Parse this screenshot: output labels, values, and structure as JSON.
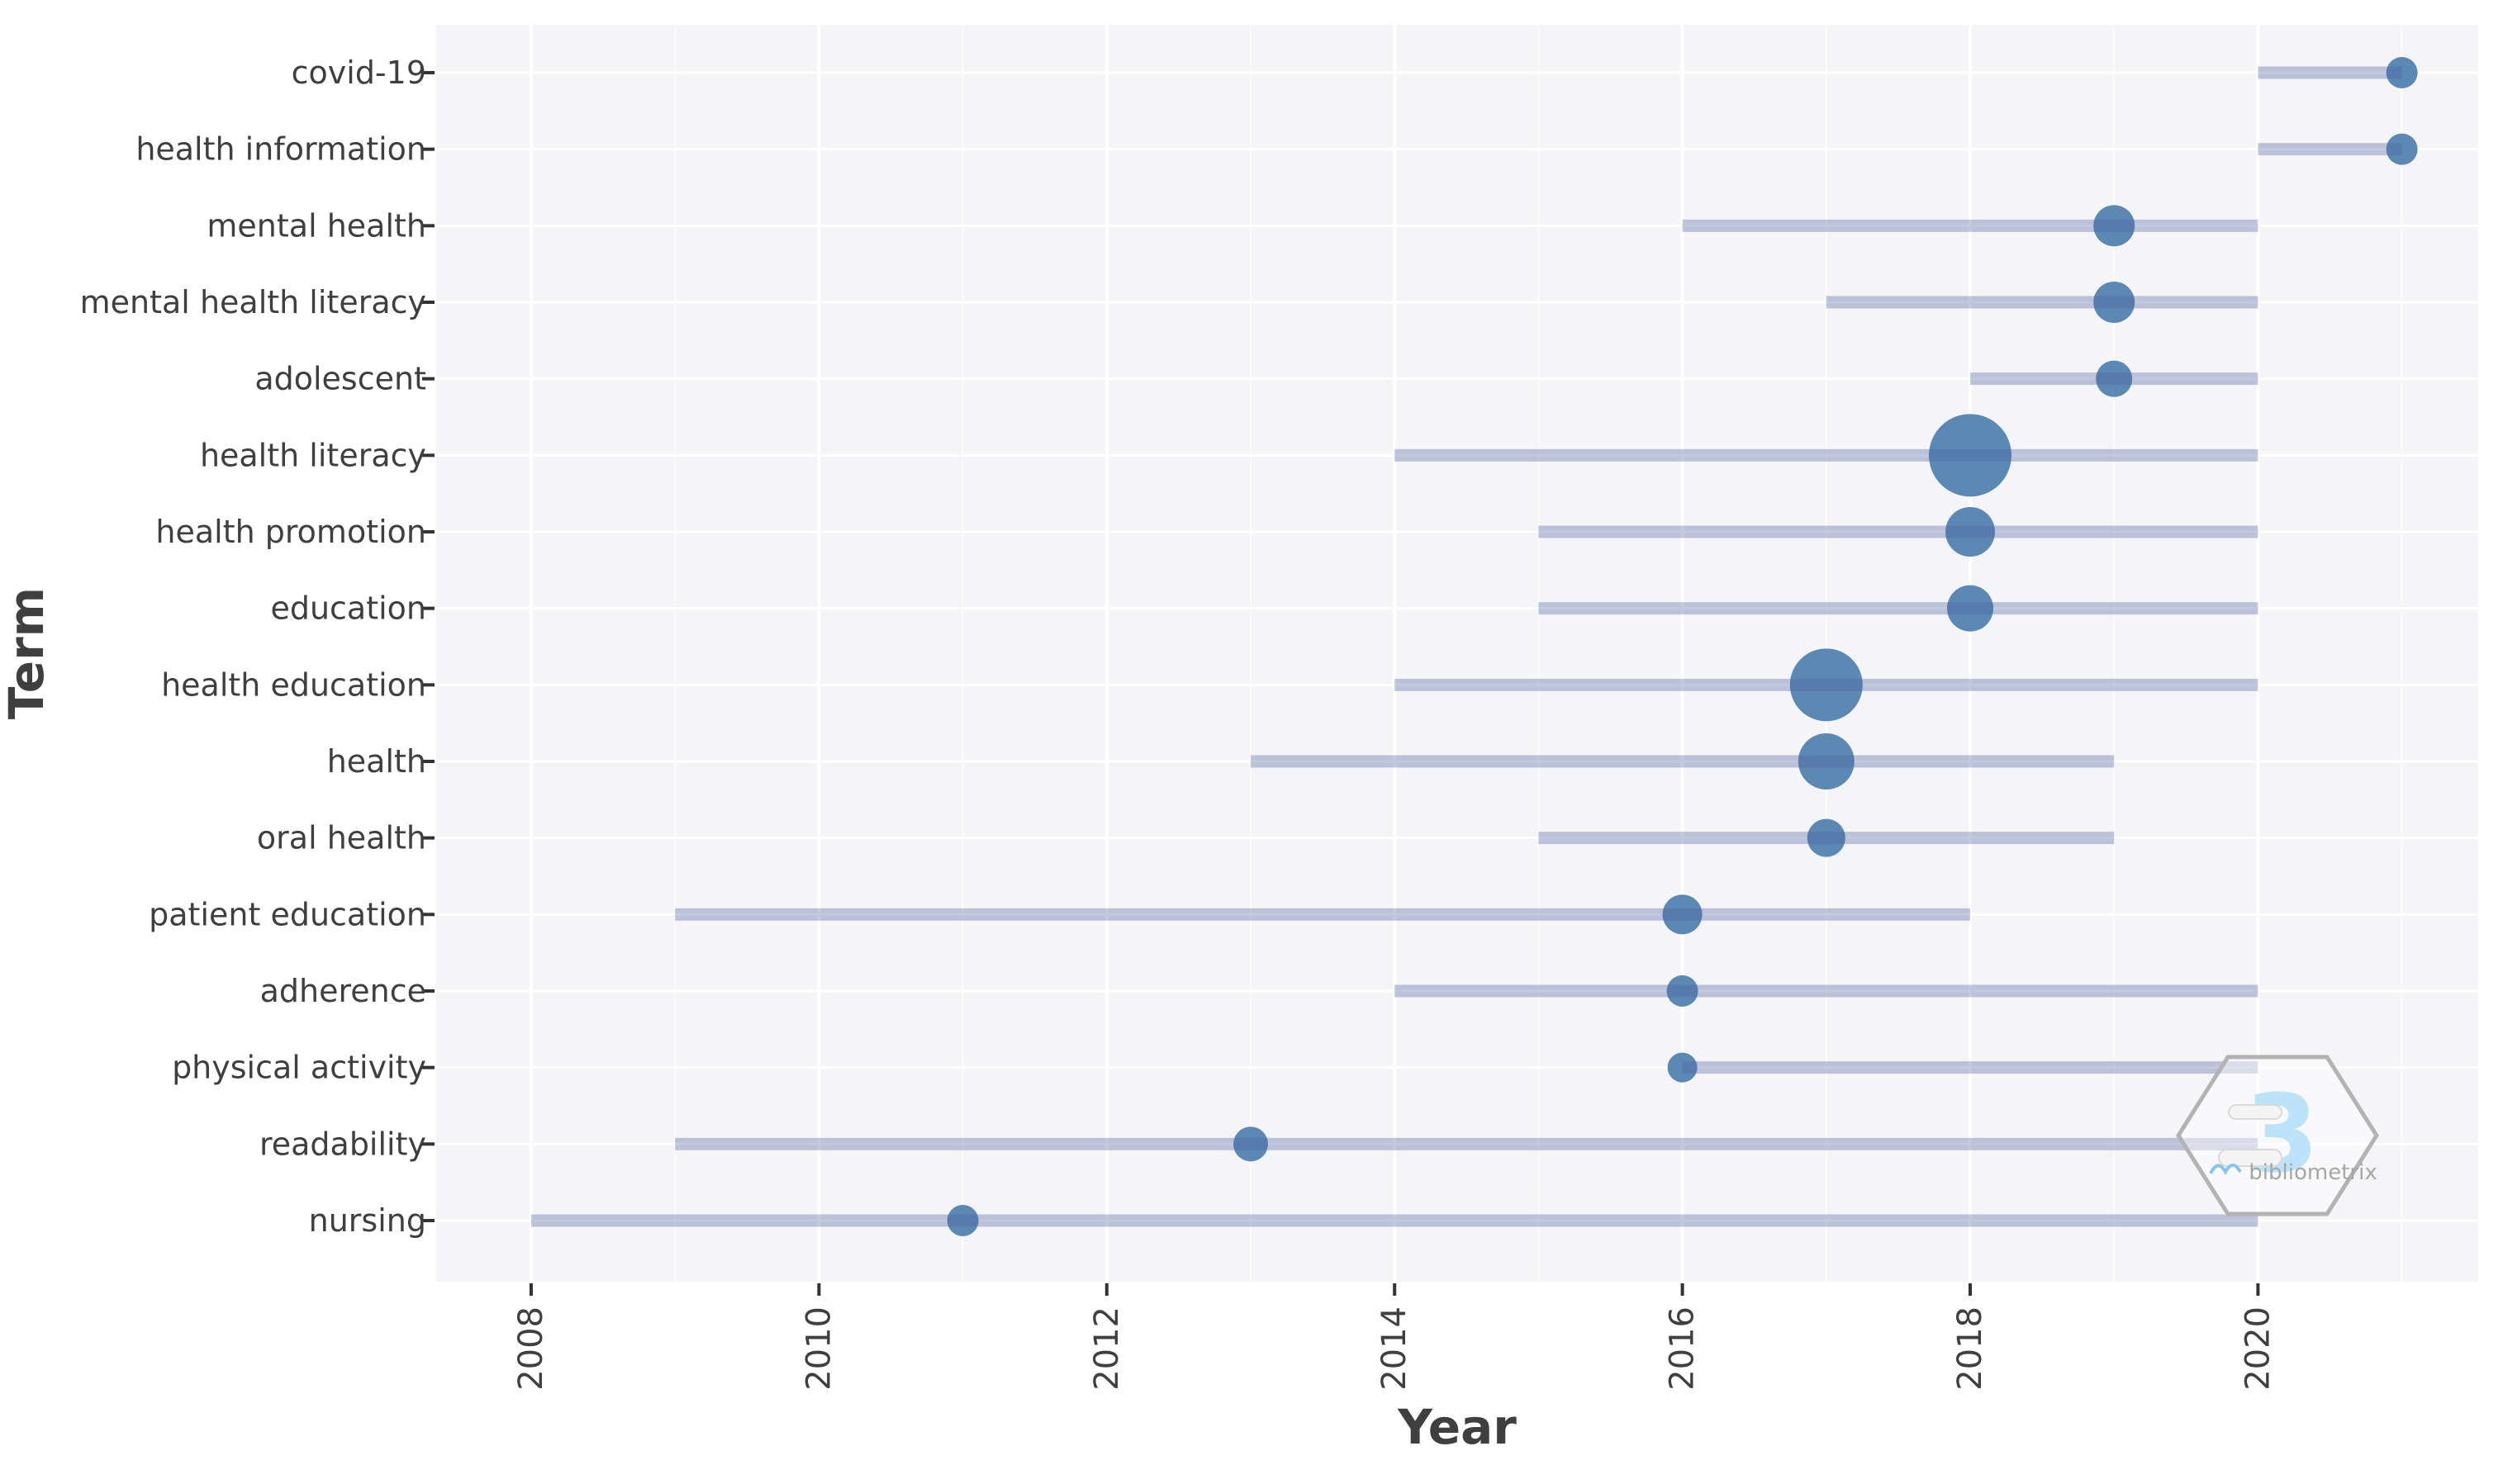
{
  "figure": {
    "x_axis_title": "Year",
    "y_axis_title": "Term"
  },
  "watermark": {
    "logo_glyph": "3",
    "brand": "bibliometrix"
  },
  "colors": {
    "panel": "#f5f5f7",
    "grid_major": "#ffffff",
    "grid_minor": "#ffffff",
    "bubble": "#5b89b4",
    "range_line": "rgba(80,98,160,0.35)",
    "axis_text": "#3f3f3f",
    "tick": "#333333",
    "hex_stroke": "#b3b3b3",
    "logo_blue": "#bce3f8",
    "brand_gray": "#a6a6a6"
  },
  "chart_data": {
    "type": "scatter",
    "subtype": "trend-topics-bubble-timeline",
    "xlabel": "Year",
    "ylabel": "Term",
    "x_ticks": [
      2008,
      2010,
      2012,
      2014,
      2016,
      2018,
      2020
    ],
    "x_minor_ticks": [
      2009,
      2011,
      2013,
      2015,
      2017,
      2019,
      2021
    ],
    "xlim": [
      2007.4,
      2021.5
    ],
    "grid": "on",
    "legend": "none",
    "categories": [
      "covid-19",
      "health information",
      "mental health",
      "mental health literacy",
      "adolescent",
      "health literacy",
      "health promotion",
      "education",
      "health education",
      "health",
      "oral health",
      "patient education",
      "adherence",
      "physical activity",
      "readability",
      "nursing"
    ],
    "terms": [
      {
        "label": "covid-19",
        "year_start": 2020,
        "year_peak": 2021,
        "year_end": 2021,
        "bubble_r": 19
      },
      {
        "label": "health information",
        "year_start": 2020,
        "year_peak": 2021,
        "year_end": 2021,
        "bubble_r": 19
      },
      {
        "label": "mental health",
        "year_start": 2016,
        "year_peak": 2019,
        "year_end": 2020,
        "bubble_r": 25
      },
      {
        "label": "mental health literacy",
        "year_start": 2017,
        "year_peak": 2019,
        "year_end": 2020,
        "bubble_r": 25
      },
      {
        "label": "adolescent",
        "year_start": 2018,
        "year_peak": 2019,
        "year_end": 2020,
        "bubble_r": 22
      },
      {
        "label": "health literacy",
        "year_start": 2014,
        "year_peak": 2018,
        "year_end": 2020,
        "bubble_r": 50
      },
      {
        "label": "health promotion",
        "year_start": 2015,
        "year_peak": 2018,
        "year_end": 2020,
        "bubble_r": 30
      },
      {
        "label": "education",
        "year_start": 2015,
        "year_peak": 2018,
        "year_end": 2020,
        "bubble_r": 28
      },
      {
        "label": "health education",
        "year_start": 2014,
        "year_peak": 2017,
        "year_end": 2020,
        "bubble_r": 44
      },
      {
        "label": "health",
        "year_start": 2013,
        "year_peak": 2017,
        "year_end": 2019,
        "bubble_r": 34
      },
      {
        "label": "oral health",
        "year_start": 2015,
        "year_peak": 2017,
        "year_end": 2019,
        "bubble_r": 23
      },
      {
        "label": "patient education",
        "year_start": 2009,
        "year_peak": 2016,
        "year_end": 2018,
        "bubble_r": 24
      },
      {
        "label": "adherence",
        "year_start": 2014,
        "year_peak": 2016,
        "year_end": 2020,
        "bubble_r": 19
      },
      {
        "label": "physical activity",
        "year_start": 2016,
        "year_peak": 2016,
        "year_end": 2020,
        "bubble_r": 18
      },
      {
        "label": "readability",
        "year_start": 2009,
        "year_peak": 2013,
        "year_end": 2020,
        "bubble_r": 21
      },
      {
        "label": "nursing",
        "year_start": 2008,
        "year_peak": 2011,
        "year_end": 2020,
        "bubble_r": 19
      }
    ]
  }
}
